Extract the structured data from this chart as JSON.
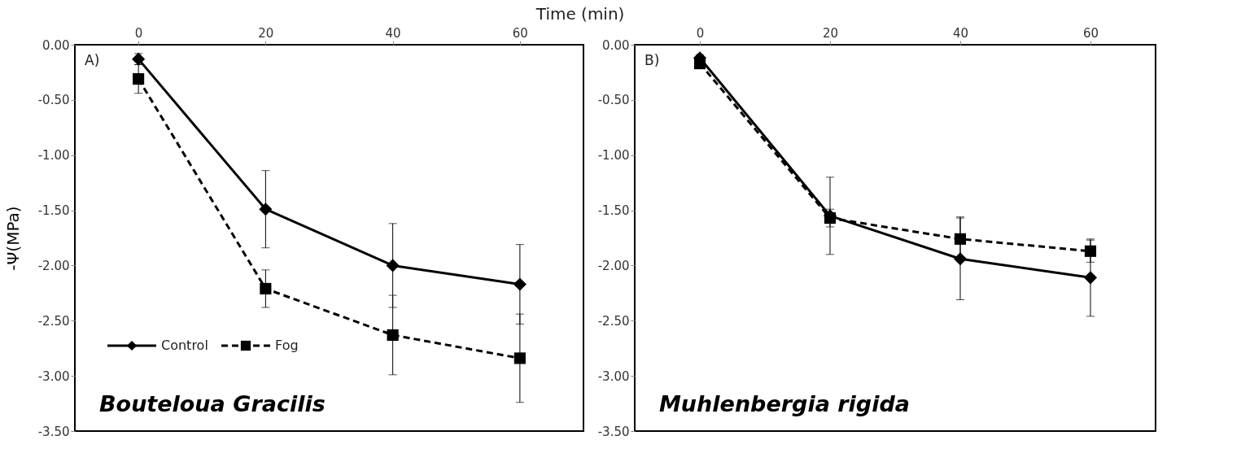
{
  "chart_data": [
    {
      "type": "line",
      "xlabel": "Time (min)",
      "ylabel": "-Ψ(MPa)",
      "x": [
        0,
        20,
        40,
        60
      ],
      "xlim": [
        -10,
        70
      ],
      "xticks": [
        0,
        20,
        40,
        60
      ],
      "ylim": [
        -3.5,
        0
      ],
      "yticks": [
        {
          "value": -3.5,
          "label": "-3.50"
        },
        {
          "value": -3,
          "label": "-3.00"
        },
        {
          "value": -2.5,
          "label": "-2.50"
        },
        {
          "value": -2,
          "label": "-2.00"
        },
        {
          "value": -1.5,
          "label": "-1.50"
        },
        {
          "value": -1,
          "label": "-1.00"
        },
        {
          "value": -0.5,
          "label": "-0.50"
        },
        {
          "value": 0,
          "label": "0.00"
        }
      ],
      "grid": false,
      "legend": "bottom left",
      "annotations": [
        "A)",
        "Bouteloua Gracilis"
      ],
      "series": [
        {
          "name": "Control",
          "color": "#000000",
          "marker": "diamond",
          "line_style": "solid",
          "values": [
            -0.13,
            -1.49,
            -2.0,
            -2.17
          ],
          "errors": [
            0.05,
            0.35,
            0.38,
            0.36
          ]
        },
        {
          "name": "Fog",
          "color": "#000000",
          "marker": "square",
          "line_style": "dashed",
          "values": [
            -0.31,
            -2.21,
            -2.63,
            -2.84
          ],
          "errors": [
            0.13,
            0.17,
            0.36,
            0.4
          ]
        }
      ]
    },
    {
      "type": "line",
      "x": [
        0,
        20,
        40,
        60
      ],
      "xlim": [
        -10,
        70
      ],
      "xticks": [
        0,
        20,
        40,
        60
      ],
      "ylim": [
        -3.5,
        0
      ],
      "yticks": [
        {
          "value": -3.5,
          "label": "-3.50"
        },
        {
          "value": -3,
          "label": "-3.00"
        },
        {
          "value": -2.5,
          "label": "-2.50"
        },
        {
          "value": -2,
          "label": "-2.00"
        },
        {
          "value": -1.5,
          "label": "-1.50"
        },
        {
          "value": -1,
          "label": "-1.00"
        },
        {
          "value": -0.5,
          "label": "-0.50"
        },
        {
          "value": 0,
          "label": "0.00"
        }
      ],
      "grid": false,
      "annotations": [
        "B)",
        "Muhlenbergia rigida"
      ],
      "series": [
        {
          "color": "#000000",
          "marker": "diamond",
          "line_style": "solid",
          "values": [
            -0.12,
            -1.55,
            -1.94,
            -2.11
          ],
          "errors": [
            0.03,
            0.35,
            0.37,
            0.35
          ]
        },
        {
          "color": "#000000",
          "marker": "square",
          "line_style": "dashed",
          "values": [
            -0.17,
            -1.57,
            -1.76,
            -1.87
          ],
          "errors": [
            0.03,
            0.08,
            0.2,
            0.1
          ]
        }
      ]
    }
  ]
}
